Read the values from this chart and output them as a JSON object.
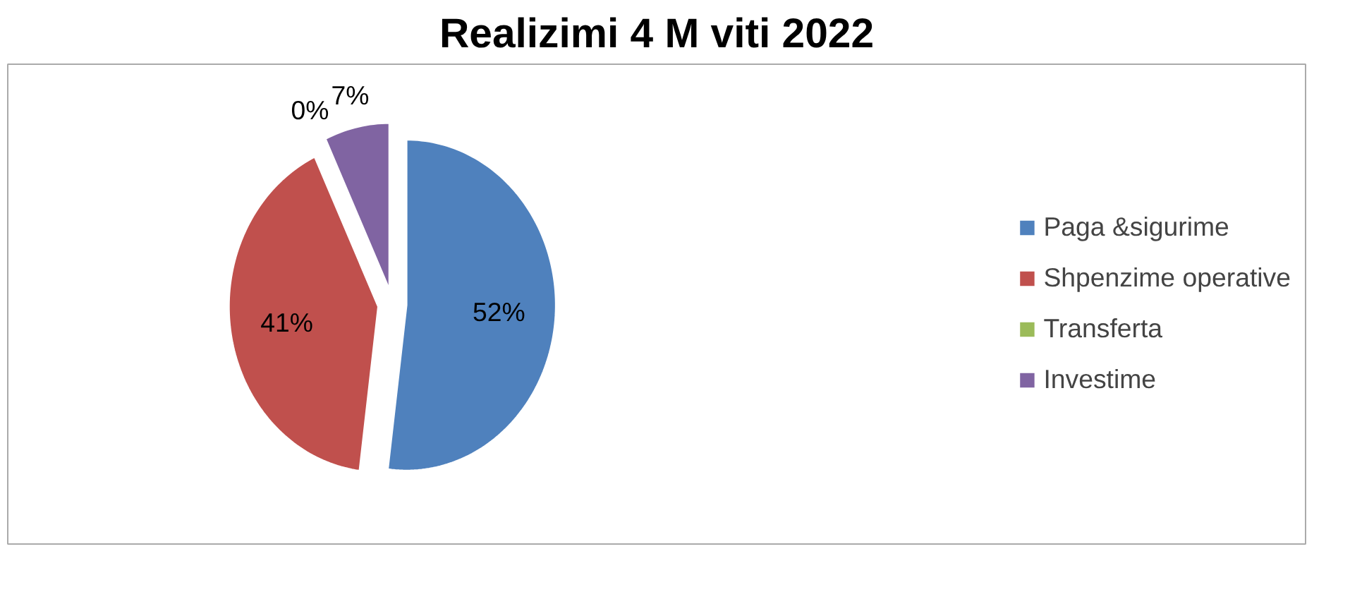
{
  "chart_data": {
    "type": "pie",
    "title": "Realizimi 4 M viti 2022",
    "categories": [
      "Paga &sigurime",
      "Shpenzime operative",
      "Transferta",
      "Investime"
    ],
    "values": [
      52,
      41,
      0,
      7
    ],
    "value_labels": [
      "52%",
      "41%",
      "0%",
      "7%"
    ],
    "colors": [
      "#4f81bd",
      "#c0504d",
      "#9bbb59",
      "#8064a2"
    ],
    "legend": "right"
  }
}
